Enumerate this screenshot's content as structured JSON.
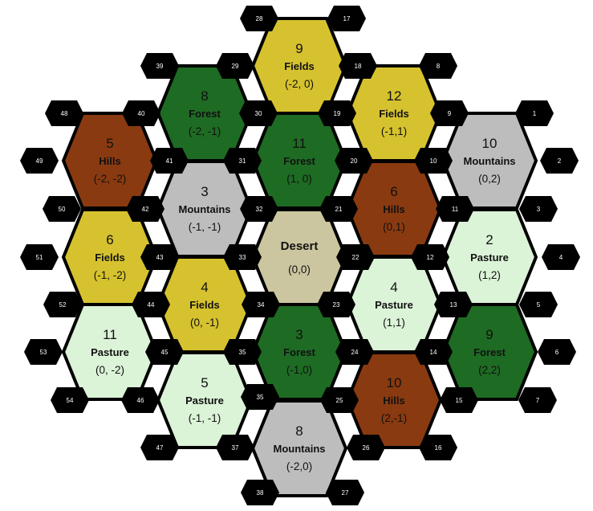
{
  "colors": {
    "Fields": "#d6c22e",
    "Forest": "#1e6b23",
    "Hills": "#8a3a10",
    "Mountains": "#bdbdbd",
    "Pasture": "#dbf3d7",
    "Desert": "#cbc69f",
    "vertex": "#000000"
  },
  "tiles": [
    {
      "number": "9",
      "resource": "Fields",
      "coord": "(-2, 0)"
    },
    {
      "number": "8",
      "resource": "Forest",
      "coord": "(-2, -1)"
    },
    {
      "number": "12",
      "resource": "Fields",
      "coord": "(-1,1)"
    },
    {
      "number": "5",
      "resource": "Hills",
      "coord": "(-2, -2)"
    },
    {
      "number": "11",
      "resource": "Forest",
      "coord": "(1, 0)"
    },
    {
      "number": "10",
      "resource": "Mountains",
      "coord": "(0,2)"
    },
    {
      "number": "3",
      "resource": "Mountains",
      "coord": "(-1, -1)"
    },
    {
      "number": "6",
      "resource": "Hills",
      "coord": "(0,1)"
    },
    {
      "number": "6",
      "resource": "Fields",
      "coord": "(-1, -2)"
    },
    {
      "number": "",
      "resource": "Desert",
      "coord": "(0,0)"
    },
    {
      "number": "2",
      "resource": "Pasture",
      "coord": "(1,2)"
    },
    {
      "number": "4",
      "resource": "Fields",
      "coord": "(0, -1)"
    },
    {
      "number": "4",
      "resource": "Pasture",
      "coord": "(1,1)"
    },
    {
      "number": "11",
      "resource": "Pasture",
      "coord": "(0, -2)"
    },
    {
      "number": "3",
      "resource": "Forest",
      "coord": "(-1,0)"
    },
    {
      "number": "9",
      "resource": "Forest",
      "coord": "(2,2)"
    },
    {
      "number": "5",
      "resource": "Pasture",
      "coord": "(-1, -1)"
    },
    {
      "number": "10",
      "resource": "Hills",
      "coord": "(2,-1)"
    },
    {
      "number": "8",
      "resource": "Mountains",
      "coord": "(-2,0)"
    }
  ],
  "vertices": [
    "28",
    "17",
    "39",
    "29",
    "18",
    "8",
    "48",
    "40",
    "30",
    "19",
    "9",
    "1",
    "49",
    "41",
    "31",
    "20",
    "10",
    "2",
    "50",
    "42",
    "32",
    "21",
    "11",
    "3",
    "51",
    "43",
    "33",
    "22",
    "12",
    "4",
    "52",
    "44",
    "34",
    "23",
    "13",
    "5",
    "53",
    "45",
    "35",
    "24",
    "14",
    "6",
    "54",
    "46",
    "35",
    "25",
    "15",
    "7",
    "47",
    "37",
    "26",
    "16",
    "38",
    "27"
  ]
}
